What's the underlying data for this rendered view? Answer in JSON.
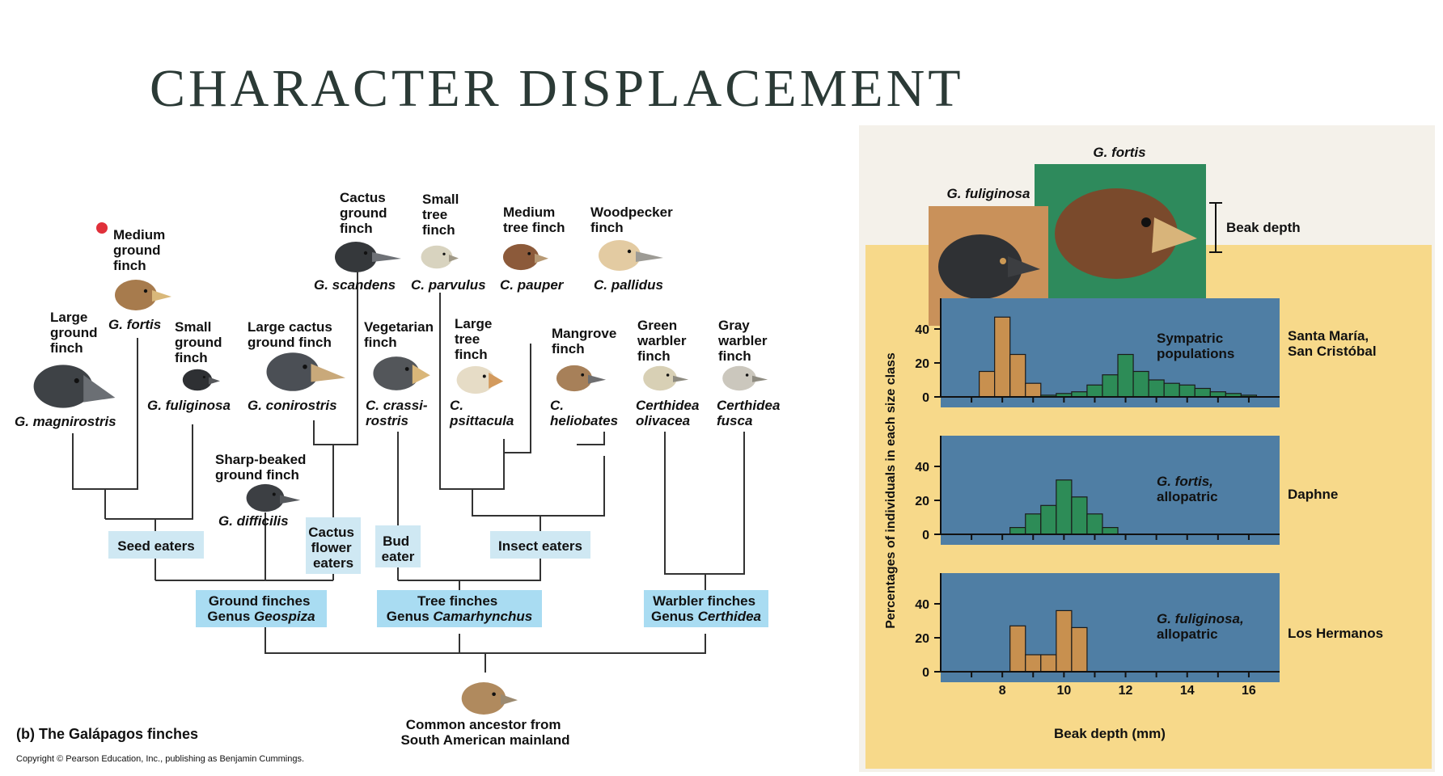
{
  "slide": {
    "title": "CHARACTER DISPLACEMENT"
  },
  "tree": {
    "species": {
      "medium_ground": {
        "common": [
          "Medium",
          "ground",
          "finch"
        ],
        "latin": "G. fortis"
      },
      "large_ground": {
        "common": [
          "Large",
          "ground",
          "finch"
        ],
        "latin": "G. magnirostris"
      },
      "small_ground": {
        "common": [
          "Small",
          "ground",
          "finch"
        ],
        "latin": "G. fuliginosa"
      },
      "large_cactus": {
        "common": [
          "Large cactus",
          "ground finch"
        ],
        "latin": "G. conirostris"
      },
      "sharp_beaked": {
        "common": [
          "Sharp-beaked",
          "ground finch"
        ],
        "latin": "G. difficilis"
      },
      "cactus_ground": {
        "common": [
          "Cactus",
          "ground",
          "finch"
        ],
        "latin": "G. scandens"
      },
      "small_tree": {
        "common": [
          "Small",
          "tree",
          "finch"
        ],
        "latin": "C. parvulus"
      },
      "medium_tree": {
        "common": [
          "Medium",
          "tree finch"
        ],
        "latin": "C. pauper"
      },
      "woodpecker": {
        "common": [
          "Woodpecker",
          "finch"
        ],
        "latin": "C. pallidus"
      },
      "vegetarian": {
        "common": [
          "Vegetarian",
          "finch"
        ],
        "latin": [
          "C. crassi-",
          "rostris"
        ]
      },
      "large_tree": {
        "common": [
          "Large",
          "tree",
          "finch"
        ],
        "latin": [
          "C.",
          "psittacula"
        ]
      },
      "mangrove": {
        "common": [
          "Mangrove",
          "finch"
        ],
        "latin": [
          "C.",
          "heliobates"
        ]
      },
      "green_warbler": {
        "common": [
          "Green",
          "warbler",
          "finch"
        ],
        "latin": [
          "Certhidea",
          "olivacea"
        ]
      },
      "gray_warbler": {
        "common": [
          "Gray",
          "warbler",
          "finch"
        ],
        "latin": [
          "Certhidea",
          "fusca"
        ]
      }
    },
    "groups": {
      "seed": "Seed eaters",
      "cactus_flower": [
        "Cactus",
        "flower",
        "eaters"
      ],
      "bud": [
        "Bud",
        "eater"
      ],
      "insect": "Insect eaters",
      "ground": [
        "Ground finches",
        "Genus ",
        "Geospiza"
      ],
      "tree": [
        "Tree finches",
        "Genus ",
        "Camarhynchus"
      ],
      "warbler": [
        "Warbler finches",
        "Genus ",
        "Certhidea"
      ]
    },
    "ancestor": [
      "Common ancestor from",
      "South American mainland"
    ],
    "caption": "(b) The Galápagos finches",
    "copyright": "Copyright © Pearson Education, Inc., publishing as Benjamin Cummings.",
    "colors": {
      "label_bg": "#cfe8f3",
      "group_bg": "#a9dcf2",
      "line": "#333333",
      "marker": "#e0303a"
    }
  },
  "figure": {
    "head_labels": {
      "fortis": "G. fortis",
      "fuliginosa": "G. fuliginosa"
    },
    "beak_label": "Beak depth",
    "sympatric_label": [
      "Sympatric",
      "populations"
    ],
    "fortis_allo": [
      "G. fortis,",
      "allopatric"
    ],
    "fuliginosa_allo": [
      "G. fuliginosa,",
      "allopatric"
    ],
    "locations": {
      "sympatric": [
        "Santa María,",
        "San Cristóbal"
      ],
      "daphne": "Daphne",
      "hermanos": "Los Hermanos"
    },
    "colors": {
      "background": "#f7d98a",
      "plot": "#4f7ea4",
      "fuliginosa": "#c8904f",
      "fortis": "#2d8c57",
      "green_bg": "#2e8a5c",
      "tan_bg": "#c9915a"
    }
  },
  "chart_data": [
    {
      "type": "bar",
      "title": "Sympatric populations",
      "location": "Santa María, San Cristóbal",
      "xlabel": "Beak depth (mm)",
      "ylabel": "Percentages of individuals in each size class",
      "xlim": [
        6,
        17
      ],
      "ylim": [
        0,
        55
      ],
      "yticks": [
        0,
        20,
        40
      ],
      "series": [
        {
          "name": "G. fuliginosa",
          "x": [
            7.5,
            8,
            8.5,
            9
          ],
          "values": [
            15,
            47,
            25,
            8
          ]
        },
        {
          "name": "G. fortis",
          "x": [
            9.5,
            10,
            10.5,
            11,
            11.5,
            12,
            12.5,
            13,
            13.5,
            14,
            14.5,
            15,
            15.5,
            16
          ],
          "values": [
            1,
            2,
            3,
            7,
            13,
            25,
            15,
            10,
            8,
            7,
            5,
            3,
            2,
            1
          ]
        }
      ]
    },
    {
      "type": "bar",
      "title": "G. fortis, allopatric",
      "location": "Daphne",
      "xlim": [
        6,
        17
      ],
      "ylim": [
        0,
        55
      ],
      "yticks": [
        0,
        20,
        40
      ],
      "series": [
        {
          "name": "G. fortis",
          "x": [
            8.5,
            9,
            9.5,
            10,
            10.5,
            11,
            11.5
          ],
          "values": [
            4,
            12,
            17,
            32,
            22,
            12,
            4
          ]
        }
      ]
    },
    {
      "type": "bar",
      "title": "G. fuliginosa, allopatric",
      "location": "Los Hermanos",
      "xlabel": "Beak depth (mm)",
      "xlim": [
        6,
        17
      ],
      "ylim": [
        0,
        55
      ],
      "xticks": [
        8,
        10,
        12,
        14,
        16
      ],
      "yticks": [
        0,
        20,
        40
      ],
      "series": [
        {
          "name": "G. fuliginosa",
          "x": [
            8.5,
            9,
            9.5,
            10,
            10.5
          ],
          "values": [
            27,
            10,
            10,
            36,
            26
          ]
        }
      ]
    }
  ]
}
